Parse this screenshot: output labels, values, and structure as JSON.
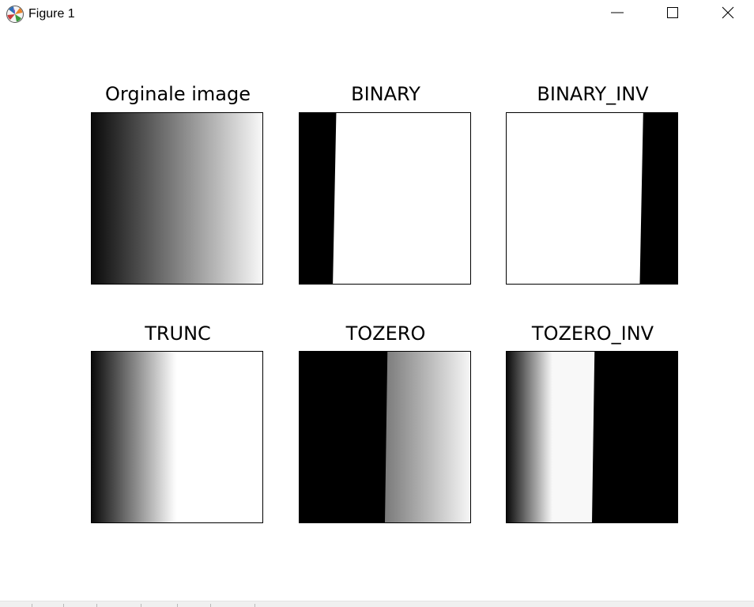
{
  "window": {
    "title": "Figure 1",
    "icons": {
      "app": "matplotlib-figure-icon",
      "minimize": "minimize-icon",
      "maximize": "maximize-icon",
      "close": "close-icon"
    }
  },
  "figure": {
    "subplots": [
      {
        "title": "Orginale image"
      },
      {
        "title": "BINARY"
      },
      {
        "title": "BINARY_INV"
      },
      {
        "title": "TRUNC"
      },
      {
        "title": "TOZERO"
      },
      {
        "title": "TOZERO_INV"
      }
    ]
  }
}
